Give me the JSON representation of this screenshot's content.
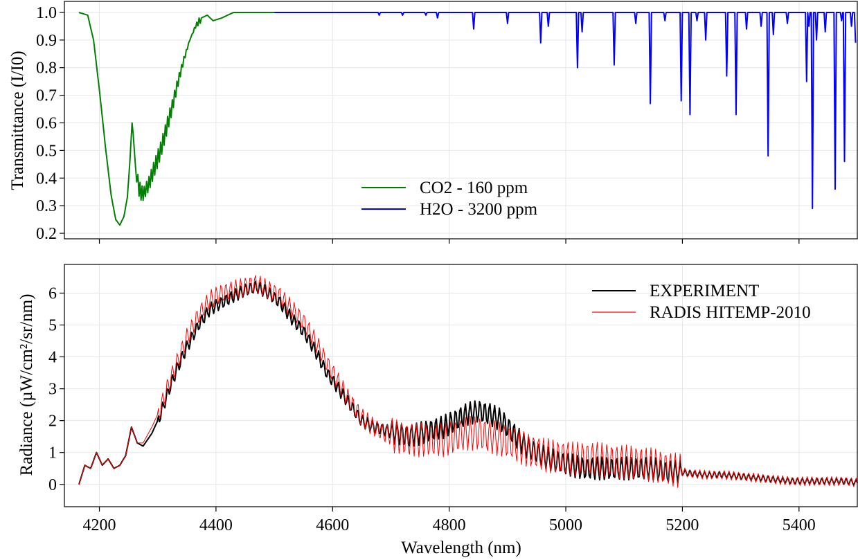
{
  "chart_data": [
    {
      "type": "line",
      "ylabel": "Transmittance (I/I0)",
      "xlabel": "",
      "xlim": [
        4140,
        5500
      ],
      "ylim": [
        0.18,
        1.04
      ],
      "xticks": [
        4200,
        4400,
        4600,
        4800,
        5000,
        5200,
        5400
      ],
      "yticks": [
        0.2,
        0.3,
        0.4,
        0.5,
        0.6,
        0.7,
        0.8,
        0.9,
        1.0
      ],
      "ytick_labels": [
        "0.2",
        "0.3",
        "0.4",
        "0.5",
        "0.6",
        "0.7",
        "0.8",
        "0.9",
        "1.0"
      ],
      "grid": true,
      "legend_position": "lower-center",
      "series": [
        {
          "name": "CO2 - 160 ppm",
          "color": "#008000",
          "x": [
            4165,
            4180,
            4190,
            4200,
            4210,
            4220,
            4228,
            4235,
            4242,
            4248,
            4252,
            4256,
            4258,
            4262,
            4268,
            4275,
            4285,
            4295,
            4305,
            4315,
            4325,
            4335,
            4345,
            4355,
            4365,
            4375,
            4385,
            4395,
            4410,
            4430,
            4460,
            4500
          ],
          "y": [
            1.0,
            0.99,
            0.9,
            0.72,
            0.52,
            0.34,
            0.25,
            0.23,
            0.26,
            0.33,
            0.45,
            0.6,
            0.56,
            0.44,
            0.36,
            0.34,
            0.38,
            0.44,
            0.5,
            0.58,
            0.66,
            0.75,
            0.83,
            0.9,
            0.95,
            0.98,
            0.99,
            0.97,
            0.98,
            1.0,
            1.0,
            1.0
          ]
        },
        {
          "name": "H2O - 3200 ppm",
          "color": "#0000ff",
          "lines": [
            [
              4680,
              0.99
            ],
            [
              4720,
              0.99
            ],
            [
              4760,
              0.99
            ],
            [
              4780,
              0.98
            ],
            [
              4842,
              0.94
            ],
            [
              4900,
              0.96
            ],
            [
              4957,
              0.89
            ],
            [
              4970,
              0.95
            ],
            [
              5020,
              0.8
            ],
            [
              5028,
              0.93
            ],
            [
              5083,
              0.81
            ],
            [
              5120,
              0.96
            ],
            [
              5145,
              0.67
            ],
            [
              5170,
              0.97
            ],
            [
              5198,
              0.68
            ],
            [
              5213,
              0.63
            ],
            [
              5225,
              0.97
            ],
            [
              5240,
              0.9
            ],
            [
              5276,
              0.77
            ],
            [
              5292,
              0.63
            ],
            [
              5310,
              0.94
            ],
            [
              5335,
              0.95
            ],
            [
              5347,
              0.48
            ],
            [
              5356,
              0.92
            ],
            [
              5380,
              0.96
            ],
            [
              5413,
              0.75
            ],
            [
              5417,
              0.95
            ],
            [
              5423,
              0.29
            ],
            [
              5430,
              0.9
            ],
            [
              5445,
              0.93
            ],
            [
              5462,
              0.36
            ],
            [
              5473,
              0.97
            ],
            [
              5478,
              0.46
            ],
            [
              5490,
              0.95
            ]
          ]
        }
      ]
    },
    {
      "type": "line",
      "xlabel": "Wavelength (nm)",
      "ylabel": "Radiance (µW/cm²/sr/nm)",
      "xlim": [
        4140,
        5500
      ],
      "ylim": [
        -0.7,
        6.9
      ],
      "xticks": [
        4200,
        4400,
        4600,
        4800,
        5000,
        5200,
        5400
      ],
      "xtick_labels": [
        "4200",
        "4400",
        "4600",
        "4800",
        "5000",
        "5200",
        "5400"
      ],
      "yticks": [
        0,
        1,
        2,
        3,
        4,
        5,
        6
      ],
      "ytick_labels": [
        "0",
        "1",
        "2",
        "3",
        "4",
        "5",
        "6"
      ],
      "grid": true,
      "legend_position": "top-right",
      "series": [
        {
          "name": "EXPERIMENT",
          "color": "#000000",
          "x": [
            4165,
            4175,
            4185,
            4195,
            4205,
            4215,
            4225,
            4235,
            4245,
            4255,
            4265,
            4275,
            4290,
            4305,
            4320,
            4335,
            4350,
            4370,
            4390,
            4410,
            4430,
            4450,
            4470,
            4490,
            4510,
            4530,
            4550,
            4570,
            4590,
            4610,
            4630,
            4650,
            4670,
            4690,
            4710,
            4730,
            4750,
            4770,
            4790,
            4810,
            4830,
            4850,
            4870,
            4890,
            4910,
            4930,
            4950,
            4970,
            4990,
            5010,
            5030,
            5050,
            5070,
            5090,
            5110,
            5130,
            5150,
            5170,
            5190,
            5210,
            5240,
            5270,
            5300,
            5330,
            5360,
            5390,
            5420,
            5450,
            5480,
            5500
          ],
          "y": [
            0.0,
            0.6,
            0.5,
            1.0,
            0.6,
            0.8,
            0.5,
            0.6,
            0.9,
            1.8,
            1.3,
            1.2,
            1.6,
            2.2,
            3.0,
            3.7,
            4.3,
            5.0,
            5.5,
            5.7,
            5.9,
            6.1,
            6.2,
            6.0,
            5.7,
            5.2,
            4.8,
            4.2,
            3.5,
            3.0,
            2.5,
            2.0,
            1.8,
            1.7,
            1.6,
            1.5,
            1.6,
            1.7,
            1.8,
            2.0,
            2.2,
            2.3,
            2.2,
            2.0,
            1.6,
            1.2,
            1.0,
            0.8,
            0.7,
            0.6,
            0.5,
            0.5,
            0.5,
            0.5,
            0.5,
            0.5,
            0.5,
            0.4,
            0.4,
            0.35,
            0.3,
            0.3,
            0.25,
            0.2,
            0.15,
            0.1,
            0.1,
            0.1,
            0.1,
            0.05
          ]
        },
        {
          "name": "RADIS HITEMP-2010",
          "color": "#ff0000",
          "x": [
            4165,
            4175,
            4185,
            4195,
            4205,
            4215,
            4225,
            4235,
            4245,
            4255,
            4265,
            4275,
            4290,
            4305,
            4320,
            4335,
            4350,
            4370,
            4390,
            4410,
            4430,
            4450,
            4470,
            4490,
            4510,
            4530,
            4550,
            4570,
            4590,
            4610,
            4630,
            4650,
            4670,
            4690,
            4710,
            4730,
            4750,
            4770,
            4790,
            4810,
            4830,
            4850,
            4870,
            4890,
            4910,
            4930,
            4950,
            4970,
            4990,
            5010,
            5030,
            5050,
            5070,
            5090,
            5110,
            5130,
            5150,
            5170,
            5190,
            5210,
            5240,
            5270,
            5300,
            5330,
            5360,
            5390,
            5420,
            5450,
            5480,
            5500
          ],
          "y": [
            0.0,
            0.6,
            0.5,
            1.0,
            0.6,
            0.8,
            0.5,
            0.6,
            0.9,
            1.8,
            1.3,
            1.3,
            1.8,
            2.4,
            3.2,
            3.9,
            4.6,
            5.3,
            5.8,
            6.0,
            6.1,
            6.2,
            6.3,
            6.1,
            5.9,
            5.5,
            5.1,
            4.5,
            3.8,
            3.2,
            2.6,
            2.1,
            1.8,
            1.6,
            1.5,
            1.4,
            1.4,
            1.4,
            1.4,
            1.5,
            1.6,
            1.6,
            1.5,
            1.4,
            1.3,
            1.1,
            1.0,
            0.9,
            0.85,
            0.8,
            0.8,
            0.8,
            0.75,
            0.7,
            0.7,
            0.65,
            0.6,
            0.5,
            0.45,
            0.35,
            0.3,
            0.3,
            0.25,
            0.2,
            0.15,
            0.1,
            0.1,
            0.1,
            0.1,
            0.05
          ]
        }
      ]
    }
  ]
}
